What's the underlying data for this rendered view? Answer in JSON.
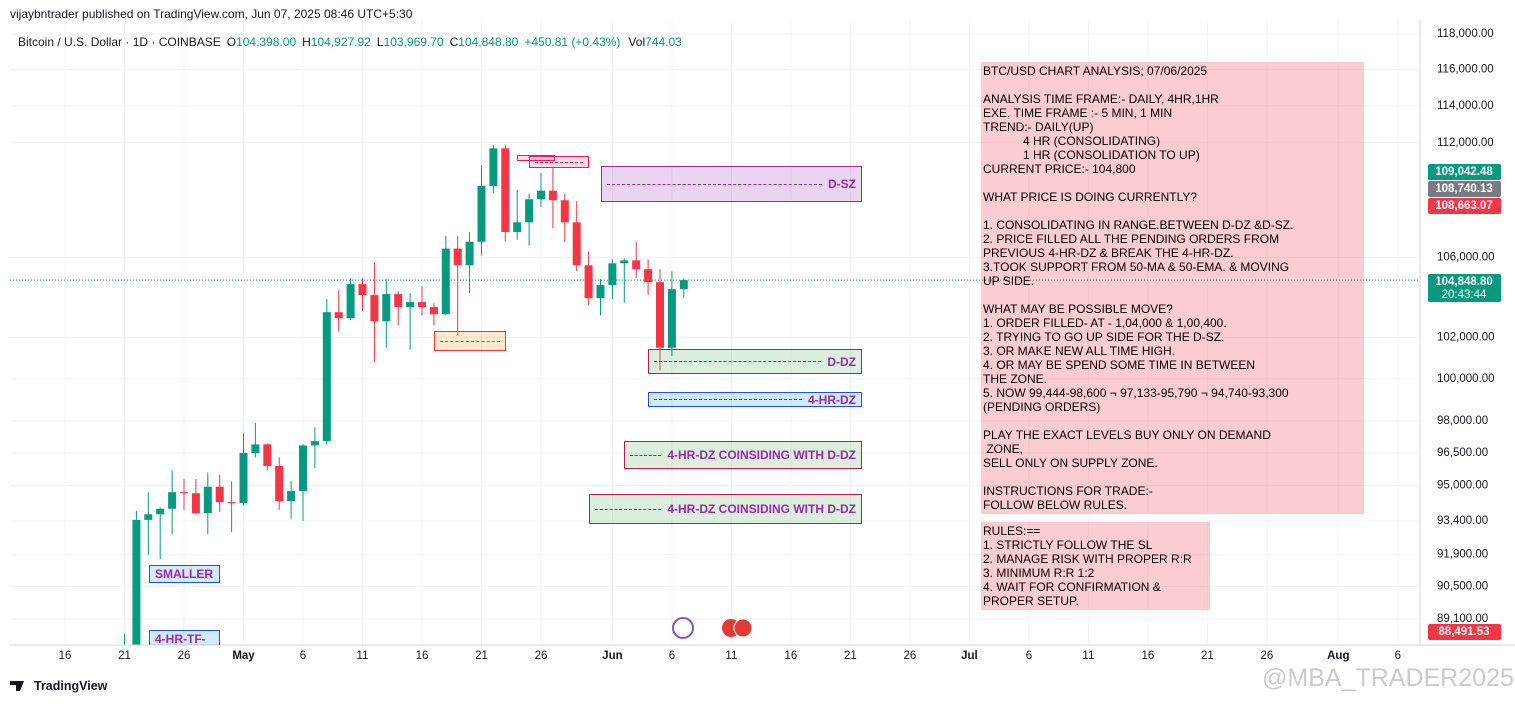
{
  "header": {
    "published": "vijaybntrader published on TradingView.com, Jun 07, 2025 08:46 UTC+5:30",
    "brand": "TradingView",
    "watermark": "@MBA_TRADER2025"
  },
  "chart_data": {
    "type": "candlestick",
    "log": true,
    "grid": true,
    "up_color": "#089981",
    "down_color": "#f23645",
    "legend": {
      "symbol": "Bitcoin / U.S. Dollar · 1D · COINBASE",
      "fields": [
        {
          "key": "O",
          "value": "104,398.00"
        },
        {
          "key": "H",
          "value": "104,927.92"
        },
        {
          "key": "L",
          "value": "103,969.70"
        },
        {
          "key": "C",
          "value": "104,848.80"
        }
      ],
      "change": "+450.81 (+0.43%)",
      "volume_key": "Vol",
      "volume": "744.03"
    },
    "categories": [
      "16",
      null,
      null,
      null,
      null,
      "21",
      null,
      null,
      null,
      null,
      "26",
      null,
      null,
      null,
      null,
      "May",
      null,
      null,
      null,
      null,
      "6",
      null,
      null,
      null,
      null,
      "11",
      null,
      null,
      null,
      null,
      "16",
      null,
      null,
      null,
      null,
      "21",
      null,
      null,
      null,
      null,
      "26",
      null,
      null,
      null,
      null,
      null,
      "Jun",
      null,
      null,
      null,
      null,
      "6",
      null,
      null,
      null,
      null,
      "11",
      null,
      null,
      null,
      null,
      "16",
      null,
      null,
      null,
      null,
      "21",
      null,
      null,
      null,
      null,
      "26",
      null,
      null,
      null,
      null,
      "Jul",
      null,
      null,
      null,
      null,
      "6",
      null,
      null,
      null,
      null,
      "11",
      null,
      null,
      null,
      null,
      "16",
      null,
      null,
      null,
      null,
      "21",
      null,
      null,
      null,
      null,
      "26",
      null,
      null,
      null,
      null,
      null,
      "Aug",
      null,
      null,
      null,
      null,
      "6"
    ],
    "open": [
      null,
      null,
      null,
      null,
      null,
      85170,
      87500,
      93450,
      93700,
      93950,
      94700,
      94650,
      93750,
      94950,
      94250,
      94200,
      96500,
      96900,
      95900,
      94300,
      94750,
      96850,
      97050,
      103250,
      102950,
      104650,
      104100,
      102800,
      104150,
      103500,
      103750,
      103500,
      103150,
      106450,
      105600,
      106800,
      109700,
      111700,
      107300,
      107800,
      109000,
      109450,
      108950,
      107800,
      105600,
      103950,
      104600,
      105700,
      105850,
      105400,
      104750,
      101500,
      104398,
      null,
      null,
      null,
      null,
      null,
      null,
      null,
      null,
      null,
      null,
      null,
      null,
      null,
      null,
      null,
      null,
      null,
      null,
      null,
      null,
      null,
      null,
      null,
      null,
      null,
      null,
      null,
      null,
      null,
      null,
      null,
      null,
      null,
      null,
      null,
      null,
      null,
      null,
      null,
      null,
      null,
      null,
      null,
      null,
      null,
      null,
      null,
      null,
      null,
      null,
      null,
      null,
      null,
      null,
      null,
      null,
      null,
      null,
      null,
      null
    ],
    "high": [
      null,
      null,
      null,
      null,
      null,
      88460,
      93850,
      94700,
      94000,
      95700,
      95300,
      95300,
      95600,
      95500,
      95200,
      97450,
      97900,
      96950,
      96300,
      95200,
      96900,
      97700,
      103900,
      104350,
      104950,
      104950,
      105750,
      104900,
      104300,
      104200,
      104550,
      103700,
      107100,
      107100,
      107300,
      110800,
      111900,
      111900,
      109500,
      109300,
      110400,
      110700,
      109300,
      108900,
      106300,
      104900,
      105900,
      105950,
      106800,
      105900,
      105400,
      105300,
      104927.92,
      null,
      null,
      null,
      null,
      null,
      null,
      null,
      null,
      null,
      null,
      null,
      null,
      null,
      null,
      null,
      null,
      null,
      null,
      null,
      null,
      null,
      null,
      null,
      null,
      null,
      null,
      null,
      null,
      null,
      null,
      null,
      null,
      null,
      null,
      null,
      null,
      null,
      null,
      null,
      null,
      null,
      null,
      null,
      null,
      null,
      null,
      null,
      null,
      null,
      null,
      null,
      null,
      null,
      null,
      null,
      null,
      null,
      null,
      null,
      null
    ],
    "low": [
      null,
      null,
      null,
      null,
      null,
      85140,
      87080,
      91900,
      91700,
      92800,
      93900,
      93700,
      92800,
      93800,
      92900,
      94100,
      96300,
      95700,
      93900,
      93500,
      93400,
      95800,
      96900,
      102300,
      102850,
      103300,
      100800,
      101500,
      102600,
      101400,
      103100,
      102600,
      103100,
      102100,
      104200,
      106100,
      109300,
      106800,
      106900,
      106600,
      108600,
      107500,
      106800,
      105300,
      103600,
      103100,
      103900,
      103700,
      104950,
      104100,
      100400,
      101100,
      103969.7,
      null,
      null,
      null,
      null,
      null,
      null,
      null,
      null,
      null,
      null,
      null,
      null,
      null,
      null,
      null,
      null,
      null,
      null,
      null,
      null,
      null,
      null,
      null,
      null,
      null,
      null,
      null,
      null,
      null,
      null,
      null,
      null,
      null,
      null,
      null,
      null,
      null,
      null,
      null,
      null,
      null,
      null,
      null,
      null,
      null,
      null,
      null,
      null,
      null,
      null,
      null,
      null,
      null,
      null,
      null,
      null,
      null,
      null,
      null,
      null
    ],
    "close": [
      null,
      null,
      null,
      null,
      null,
      87500,
      93450,
      93700,
      93950,
      94700,
      94650,
      93750,
      94950,
      94250,
      94200,
      96500,
      96900,
      95900,
      94300,
      94750,
      96850,
      97050,
      103250,
      102950,
      104650,
      104100,
      102800,
      104150,
      103500,
      103750,
      103500,
      103150,
      106450,
      105600,
      106800,
      109700,
      111700,
      107300,
      107800,
      109000,
      109450,
      108950,
      107800,
      105600,
      103950,
      104600,
      105700,
      105850,
      105400,
      104750,
      101500,
      104398,
      104848.8,
      null,
      null,
      null,
      null,
      null,
      null,
      null,
      null,
      null,
      null,
      null,
      null,
      null,
      null,
      null,
      null,
      null,
      null,
      null,
      null,
      null,
      null,
      null,
      null,
      null,
      null,
      null,
      null,
      null,
      null,
      null,
      null,
      null,
      null,
      null,
      null,
      null,
      null,
      null,
      null,
      null,
      null,
      null,
      null,
      null,
      null,
      null,
      null,
      null,
      null,
      null,
      null,
      null,
      null,
      null,
      null,
      null,
      null,
      null,
      null
    ],
    "ylim": [
      88000,
      118800
    ],
    "yticks": [
      {
        "value": 118000,
        "label": "118,000.00"
      },
      {
        "value": 116000,
        "label": "116,000.00"
      },
      {
        "value": 114000,
        "label": "114,000.00"
      },
      {
        "value": 112000,
        "label": "112,000.00"
      },
      {
        "value": 106000,
        "label": "106,000.00"
      },
      {
        "value": 102000,
        "label": "102,000.00"
      },
      {
        "value": 100000,
        "label": "100,000.00"
      },
      {
        "value": 98000,
        "label": "98,000.00"
      },
      {
        "value": 96500,
        "label": "96,500.00"
      },
      {
        "value": 95000,
        "label": "95,000.00"
      },
      {
        "value": 93400,
        "label": "93,400.00"
      },
      {
        "value": 91900,
        "label": "91,900.00"
      },
      {
        "value": 90500,
        "label": "90,500.00"
      },
      {
        "value": 89100,
        "label": "89,100.00"
      }
    ],
    "price_tags": [
      {
        "value": 109042.48,
        "label": "109,042.48",
        "color": "#089981"
      },
      {
        "value": 108740.13,
        "label": "108,740.13",
        "color": "#787b86"
      },
      {
        "value": 108663.07,
        "label": "108,663.07",
        "color": "#f23645"
      },
      {
        "value": 104848.8,
        "label": "104,848.80",
        "color": "#089981"
      },
      {
        "value": 88491.53,
        "label": "88,491.53",
        "color": "#f23645"
      }
    ],
    "countdown": "20:43:44",
    "annotations": [
      "D-SZ",
      "D-DZ",
      "4-HR-DZ",
      "4-HR-DZ COINSIDING WITH D-DZ",
      "4-HR-DZ COINSIDING WITH D-DZ",
      "SMALLER",
      "4-HR-TF-"
    ]
  },
  "analysis": [
    [
      "BTC/USD CHART ANALYSIS; 07/06/2025"
    ],
    [
      "ANALYSIS TIME FRAME:- DAILY, 4HR,1HR",
      "EXE. TIME FRAME :- 5 MIN, 1 MIN",
      "TREND:- DAILY(UP)",
      "            4 HR (CONSOLIDATING)",
      "            1 HR (CONSOLIDATION TO UP)",
      "CURRENT PRICE:- 104,800"
    ],
    [
      "WHAT PRICE IS DOING CURRENTLY?"
    ],
    [
      "1. CONSOLIDATING IN RANGE.BETWEEN D-DZ &D-SZ.",
      "2. PRICE FILLED ALL THE PENDING ORDERS FROM",
      "PREVIOUS 4-HR-DZ & BREAK THE 4-HR-DZ.",
      "3.TOOK SUPPORT FROM 50-MA & 50-EMA. & MOVING",
      "UP SIDE."
    ],
    [
      "WHAT MAY BE POSSIBLE MOVE?",
      "1. ORDER FILLED- AT - 1,04,000 & 1,00,400.",
      "2. TRYING TO GO UP SIDE FOR THE D-SZ.",
      "3. OR MAKE NEW ALL TIME HIGH.",
      "4. OR MAY BE SPEND SOME TIME IN BETWEEN",
      "THE ZONE.",
      "5. NOW 99,444-98,600 ¬ 97,133-95,790 ¬ 94,740-93,300",
      "(PENDING ORDERS)"
    ],
    [
      "PLAY THE EXACT LEVELS BUY ONLY ON DEMAND",
      " ZONE,",
      "SELL ONLY ON SUPPLY ZONE."
    ],
    [
      "INSTRUCTIONS FOR TRADE:-",
      "FOLLOW BELOW RULES."
    ]
  ],
  "rules": [
    "RULES:==",
    "1. STRICTLY FOLLOW THE SL",
    "2. MANAGE RISK WITH PROPER R:R",
    "3. MINIMUM R:R 1:2",
    "4. WAIT FOR CONFIRMATION &",
    "PROPER SETUP."
  ]
}
